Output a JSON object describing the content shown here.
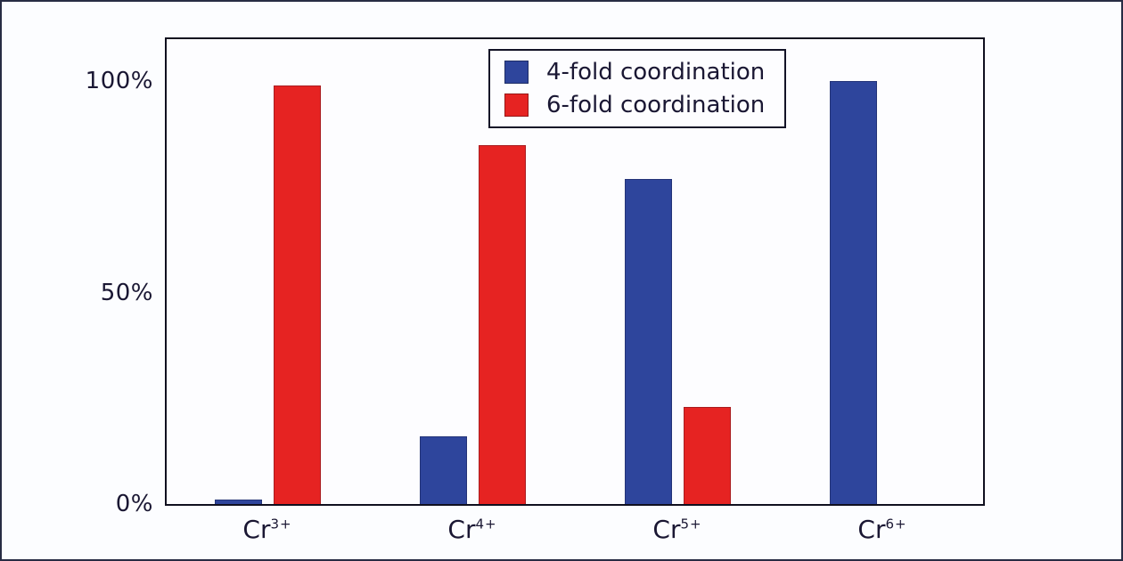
{
  "chart_data": {
    "type": "bar",
    "title": "",
    "xlabel": "",
    "ylabel": "",
    "categories": [
      {
        "base": "Cr",
        "sup": "3+"
      },
      {
        "base": "Cr",
        "sup": "4+"
      },
      {
        "base": "Cr",
        "sup": "5+"
      },
      {
        "base": "Cr",
        "sup": "6+"
      }
    ],
    "series": [
      {
        "name": "4-fold coordination",
        "color": "#2e459c",
        "values": [
          1,
          16,
          77,
          100
        ]
      },
      {
        "name": "6-fold coordination",
        "color": "#e62322",
        "values": [
          99,
          85,
          23,
          0
        ]
      }
    ],
    "y_ticks": [
      {
        "value": 0,
        "label": "0%"
      },
      {
        "value": 50,
        "label": "50%"
      },
      {
        "value": 100,
        "label": "100%"
      }
    ],
    "ylim": [
      0,
      110
    ],
    "grid": false,
    "legend_position": "top-center-inside"
  },
  "colors": {
    "blue_series": "#2e459c",
    "red_series": "#e62322",
    "text": "#1a1733",
    "frame": "#10101f",
    "background": "#fcfdff"
  }
}
